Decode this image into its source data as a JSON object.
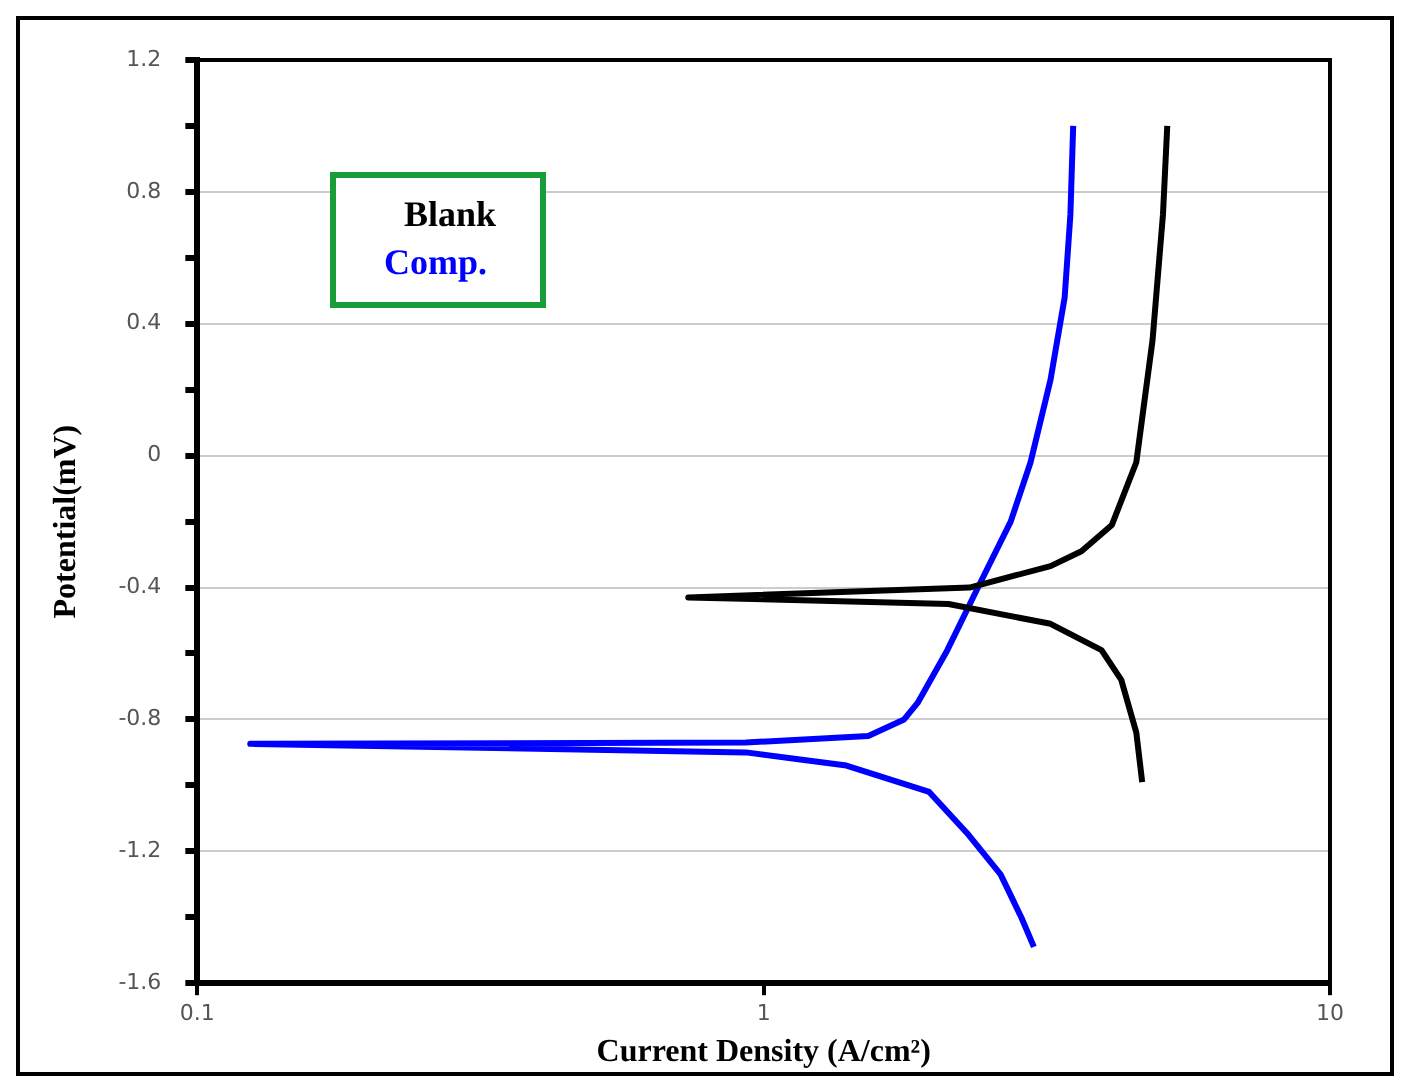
{
  "chart_data": {
    "type": "line",
    "xlabel": "Current Density (A/cm²)",
    "ylabel": "Potential(mV)",
    "log": "x",
    "grid": "y",
    "legend": "top left",
    "marker": "none",
    "line_style": "solid",
    "xlim": [
      0.1,
      10
    ],
    "xticks": [
      0.1,
      1,
      10
    ],
    "ylim": [
      -1.6,
      1.2
    ],
    "yticks": [
      -1.6,
      {
        "value": -1.4,
        "label": null
      },
      -1.2,
      {
        "value": -1.0,
        "label": null
      },
      -0.8,
      {
        "value": -0.6,
        "label": null
      },
      -0.4,
      {
        "value": -0.2,
        "label": null
      },
      0,
      {
        "value": 0.2,
        "label": null
      },
      0.4,
      {
        "value": 0.6,
        "label": null
      },
      0.8,
      {
        "value": 1.0,
        "label": null
      },
      1.2
    ],
    "series": [
      {
        "name": "Blank",
        "color": "#000000",
        "x": [
          4.66,
          4.55,
          4.28,
          3.95,
          3.21,
          2.12,
          0.736,
          2.31,
          3.21,
          3.64,
          4.12,
          4.55,
          4.86,
          5.07,
          5.16
        ],
        "values": [
          -0.99,
          -0.84,
          -0.68,
          -0.59,
          -0.51,
          -0.45,
          -0.43,
          -0.4,
          -0.335,
          -0.29,
          -0.21,
          -0.02,
          0.35,
          0.73,
          1.0
        ]
      },
      {
        "name": "Comp.",
        "color": "#0000ff",
        "x": [
          3.0,
          2.85,
          2.62,
          2.3,
          1.96,
          1.4,
          0.93,
          0.124,
          0.93,
          1.53,
          1.77,
          1.87,
          2.11,
          2.39,
          2.73,
          2.96,
          3.21,
          3.4,
          3.48,
          3.52
        ],
        "values": [
          -1.49,
          -1.4,
          -1.27,
          -1.15,
          -1.02,
          -0.94,
          -0.9,
          -0.874,
          -0.87,
          -0.85,
          -0.8,
          -0.75,
          -0.59,
          -0.4,
          -0.2,
          -0.02,
          0.23,
          0.48,
          0.73,
          1.0
        ]
      }
    ]
  }
}
